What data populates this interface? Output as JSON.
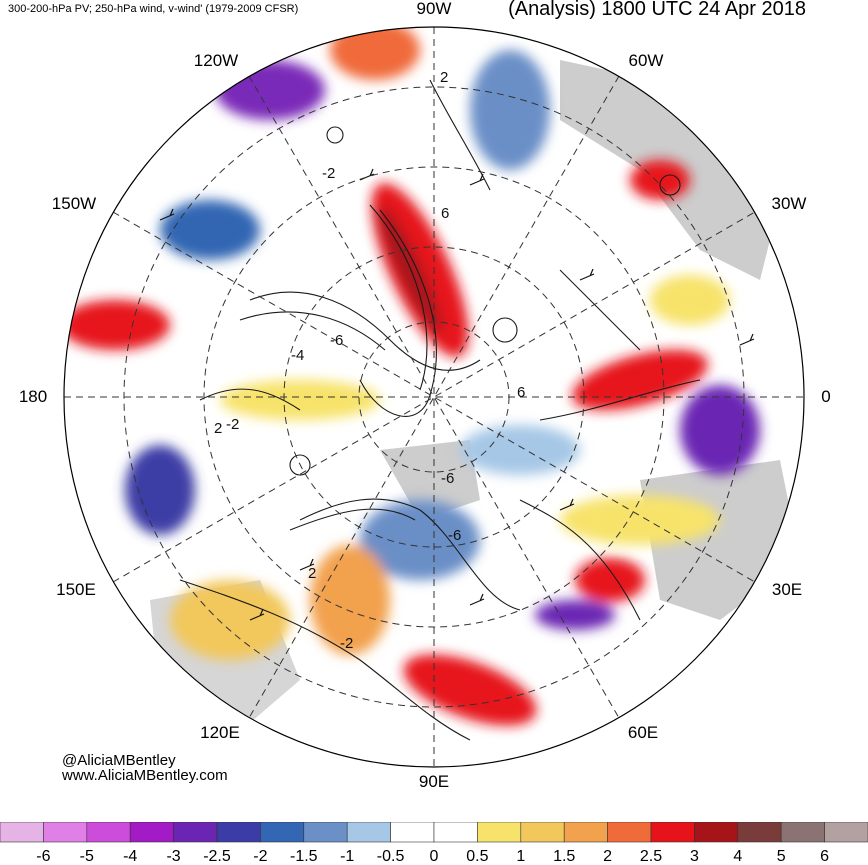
{
  "header": {
    "left_title": "300-200-hPa PV; 250-hPa wind, v-wind' (1979-2009 CFSR)",
    "right_title": "(Analysis) 1800 UTC 24 Apr 2018"
  },
  "credits": {
    "twitter": "@AliciaMBentley",
    "website": "www.AliciaMBentley.com"
  },
  "longitude_labels": [
    "90W",
    "60W",
    "30W",
    "0",
    "30E",
    "60E",
    "90E",
    "120E",
    "150E",
    "180",
    "150W",
    "120W"
  ],
  "contour_labels": [
    "2",
    "-2",
    "6",
    "-6",
    "-4",
    "2",
    "-2",
    "6",
    "-6",
    "2",
    "-2",
    "-6"
  ],
  "colorbar": {
    "levels": [
      "-6",
      "-5",
      "-4",
      "-3",
      "-2.5",
      "-2",
      "-1.5",
      "-1",
      "-0.5",
      "0",
      "0.5",
      "1",
      "1.5",
      "2",
      "2.5",
      "3",
      "4",
      "5",
      "6"
    ],
    "colors": [
      "#e6b3e6",
      "#e07fe6",
      "#cc4dd9",
      "#a31ac7",
      "#6a26b3",
      "#3c3ca6",
      "#3366b3",
      "#6b8fc7",
      "#a6c8e6",
      "#ffffff",
      "#ffffff",
      "#f7e36b",
      "#f2c75c",
      "#f2a14d",
      "#f06b3a",
      "#e6141a",
      "#a6141a",
      "#7a3b3b",
      "#8c7373",
      "#b3a0a0"
    ]
  },
  "colors": {
    "land": "#c8c8c8",
    "contour": "#1a1a1a",
    "grid": "#333333"
  }
}
